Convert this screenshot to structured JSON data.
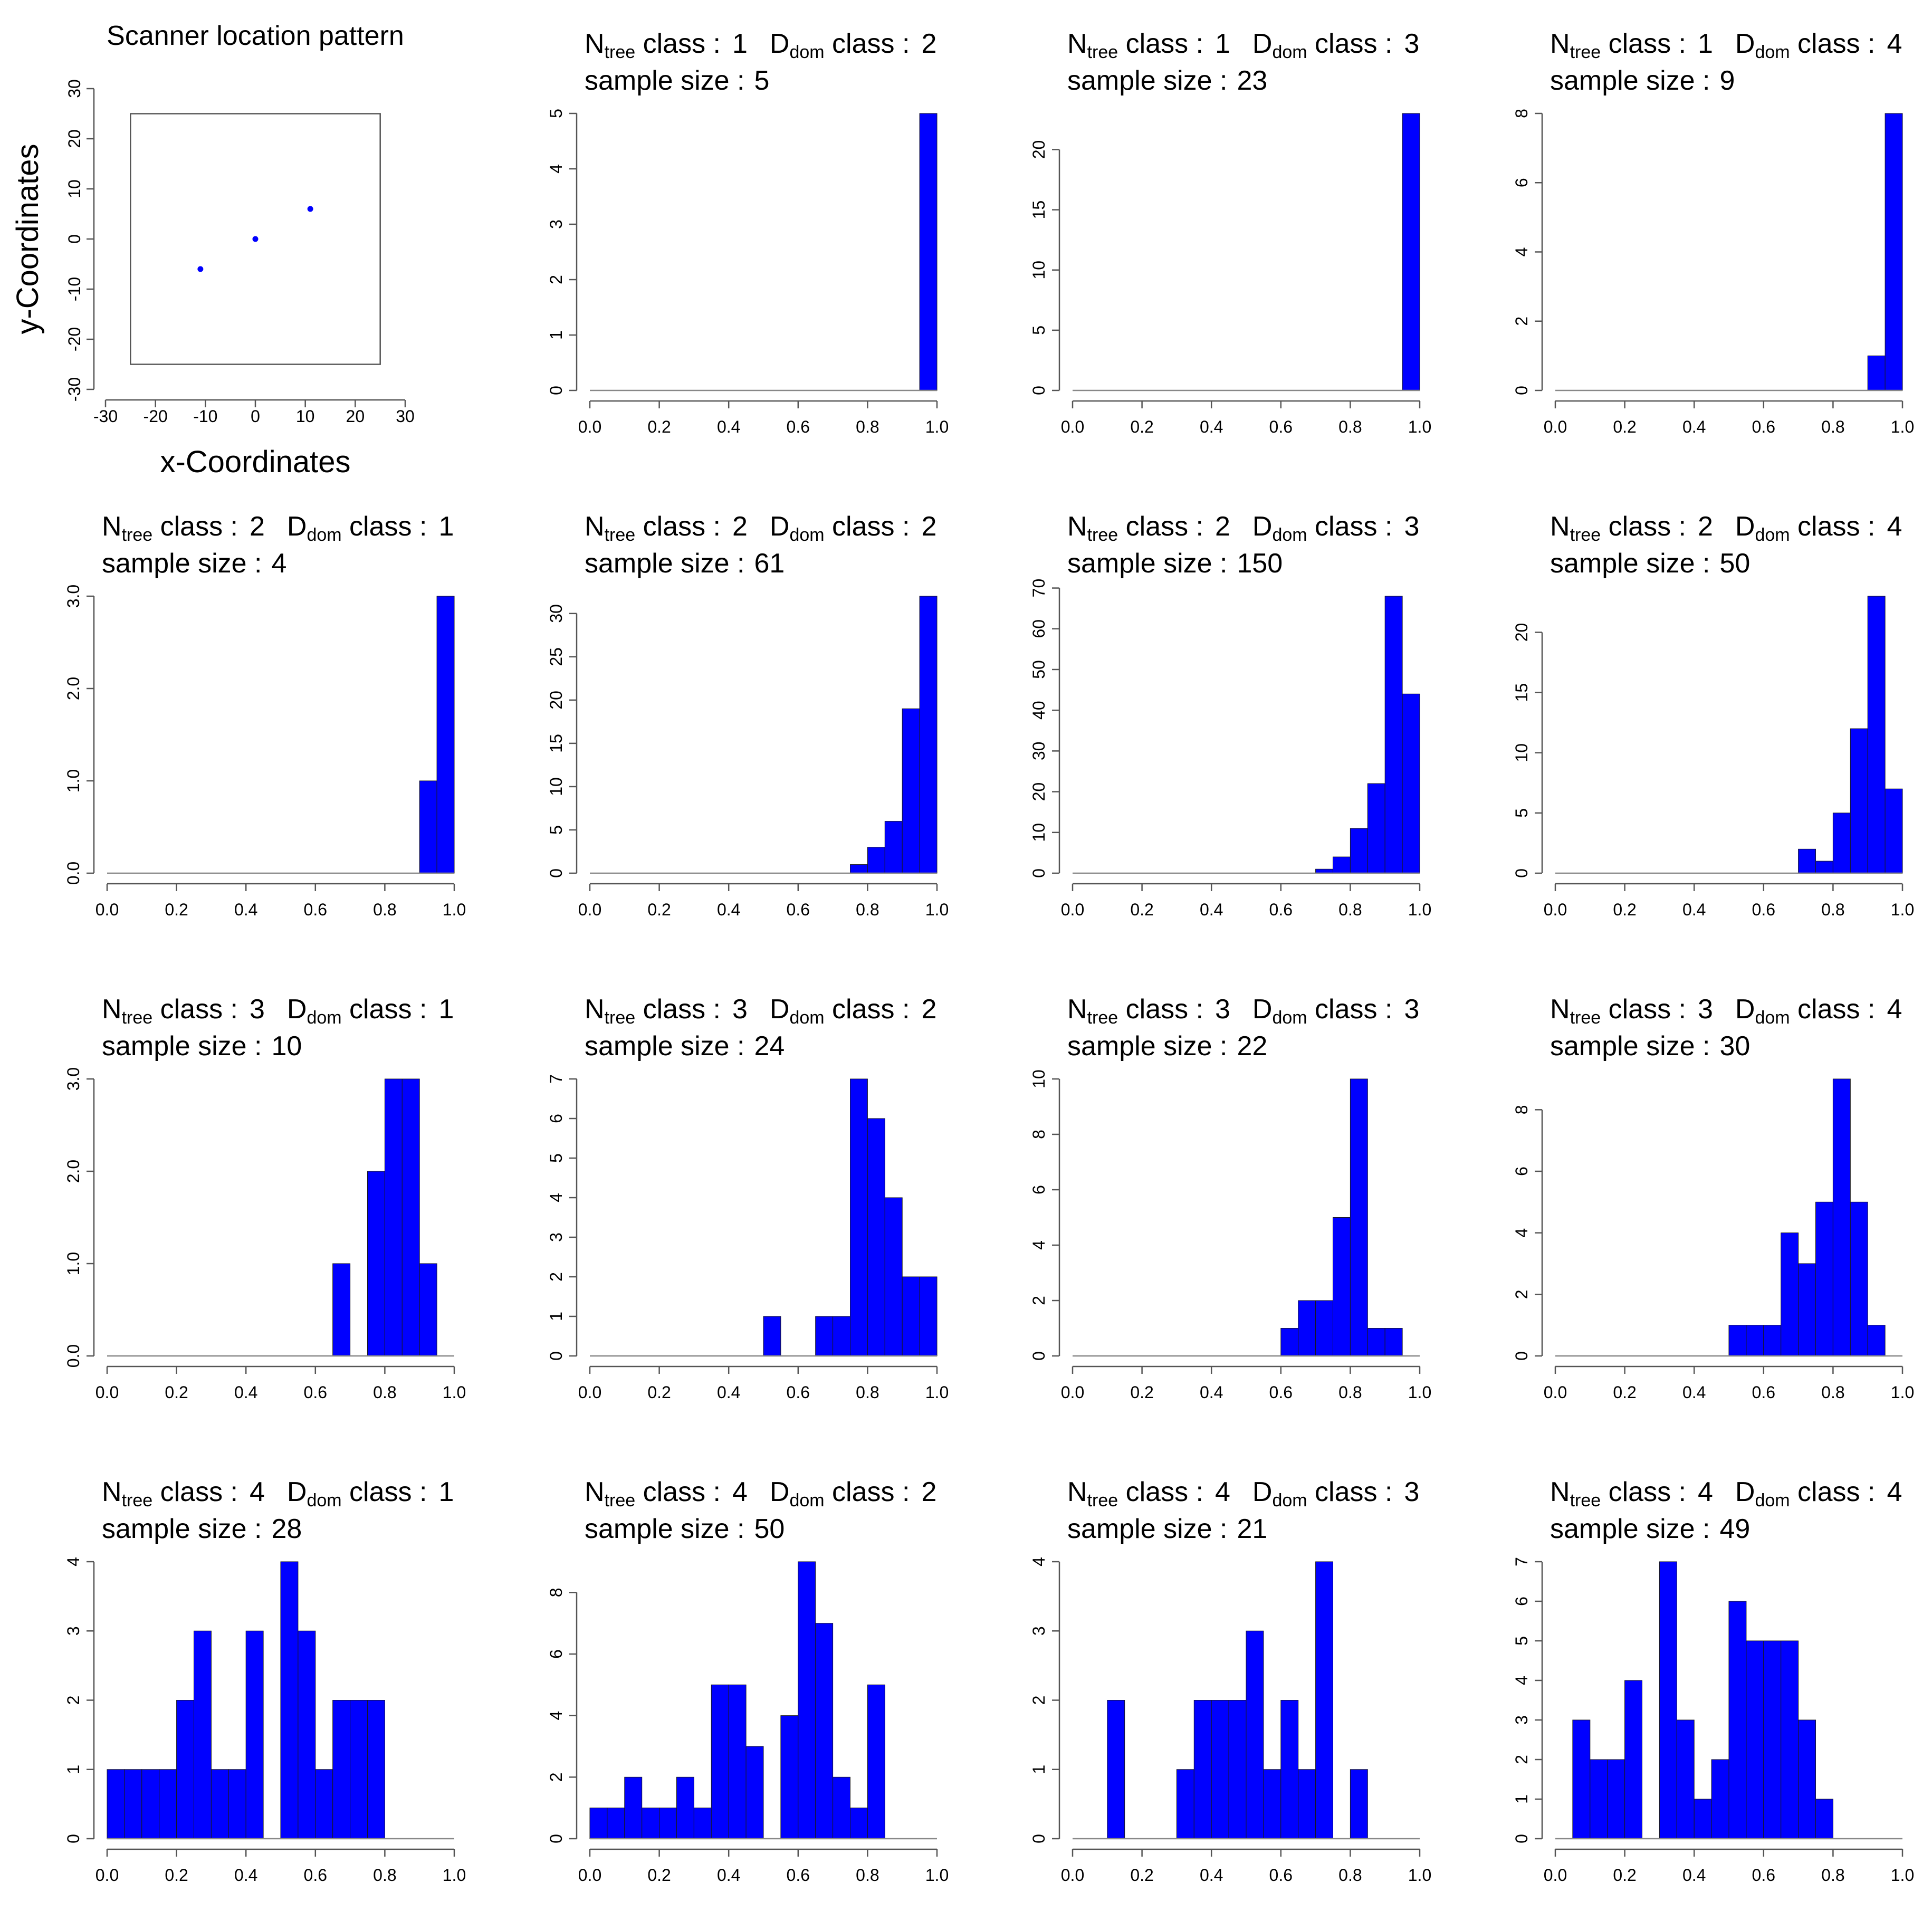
{
  "colors": {
    "bar": "#0000ff",
    "point": "#0000ff"
  },
  "chart_data": [
    {
      "type": "scatter",
      "title": "Scanner location pattern",
      "xlabel": "x-Coordinates",
      "ylabel": "y-Coordinates",
      "xlim": [
        -30,
        30
      ],
      "ylim": [
        -30,
        30
      ],
      "xticks": [
        -30,
        -20,
        -10,
        0,
        10,
        20,
        30
      ],
      "yticks": [
        -30,
        -20,
        -10,
        0,
        10,
        20,
        30
      ],
      "plot_boundary": {
        "xmin": -25,
        "xmax": 25,
        "ymin": -25,
        "ymax": 25
      },
      "points": [
        {
          "x": -11,
          "y": -6
        },
        {
          "x": 0,
          "y": 0
        },
        {
          "x": 11,
          "y": 6
        }
      ]
    },
    {
      "type": "bar",
      "ntree": "1",
      "ddom": "2",
      "n": "5",
      "ymax": 5,
      "yticks": [
        "0",
        "1",
        "2",
        "3",
        "4",
        "5"
      ],
      "values": [
        0,
        0,
        0,
        0,
        0,
        0,
        0,
        0,
        0,
        0,
        0,
        0,
        0,
        0,
        0,
        0,
        0,
        0,
        0,
        5
      ]
    },
    {
      "type": "bar",
      "ntree": "1",
      "ddom": "3",
      "n": "23",
      "ymax": 23,
      "yticks": [
        "0",
        "5",
        "10",
        "15",
        "20"
      ],
      "values": [
        0,
        0,
        0,
        0,
        0,
        0,
        0,
        0,
        0,
        0,
        0,
        0,
        0,
        0,
        0,
        0,
        0,
        0,
        0,
        23
      ]
    },
    {
      "type": "bar",
      "ntree": "1",
      "ddom": "4",
      "n": "9",
      "ymax": 8,
      "yticks": [
        "0",
        "2",
        "4",
        "6",
        "8"
      ],
      "values": [
        0,
        0,
        0,
        0,
        0,
        0,
        0,
        0,
        0,
        0,
        0,
        0,
        0,
        0,
        0,
        0,
        0,
        0,
        1,
        8
      ]
    },
    {
      "type": "bar",
      "ntree": "2",
      "ddom": "1",
      "n": "4",
      "ymax": 3,
      "yticks": [
        "0.0",
        "1.0",
        "2.0",
        "3.0"
      ],
      "values": [
        0,
        0,
        0,
        0,
        0,
        0,
        0,
        0,
        0,
        0,
        0,
        0,
        0,
        0,
        0,
        0,
        0,
        0,
        1,
        3
      ]
    },
    {
      "type": "bar",
      "ntree": "2",
      "ddom": "2",
      "n": "61",
      "ymax": 32,
      "yticks": [
        "0",
        "5",
        "10",
        "15",
        "20",
        "25",
        "30"
      ],
      "values": [
        0,
        0,
        0,
        0,
        0,
        0,
        0,
        0,
        0,
        0,
        0,
        0,
        0,
        0,
        0,
        1,
        3,
        6,
        19,
        32
      ]
    },
    {
      "type": "bar",
      "ntree": "2",
      "ddom": "3",
      "n": "150",
      "ymax": 68,
      "yticks": [
        "0",
        "10",
        "20",
        "30",
        "40",
        "50",
        "60",
        "70"
      ],
      "values": [
        0,
        0,
        0,
        0,
        0,
        0,
        0,
        0,
        0,
        0,
        0,
        0,
        0,
        0,
        1,
        4,
        11,
        22,
        68,
        44
      ]
    },
    {
      "type": "bar",
      "ntree": "2",
      "ddom": "4",
      "n": "50",
      "ymax": 23,
      "yticks": [
        "0",
        "5",
        "10",
        "15",
        "20"
      ],
      "values": [
        0,
        0,
        0,
        0,
        0,
        0,
        0,
        0,
        0,
        0,
        0,
        0,
        0,
        0,
        2,
        1,
        5,
        12,
        23,
        7
      ]
    },
    {
      "type": "bar",
      "ntree": "3",
      "ddom": "1",
      "n": "10",
      "ymax": 3,
      "yticks": [
        "0.0",
        "1.0",
        "2.0",
        "3.0"
      ],
      "values": [
        0,
        0,
        0,
        0,
        0,
        0,
        0,
        0,
        0,
        0,
        0,
        0,
        0,
        1,
        0,
        2,
        3,
        3,
        1,
        0
      ]
    },
    {
      "type": "bar",
      "ntree": "3",
      "ddom": "2",
      "n": "24",
      "ymax": 7,
      "yticks": [
        "0",
        "1",
        "2",
        "3",
        "4",
        "5",
        "6",
        "7"
      ],
      "values": [
        0,
        0,
        0,
        0,
        0,
        0,
        0,
        0,
        0,
        0,
        1,
        0,
        0,
        1,
        1,
        7,
        6,
        4,
        2,
        2
      ]
    },
    {
      "type": "bar",
      "ntree": "3",
      "ddom": "3",
      "n": "22",
      "ymax": 10,
      "yticks": [
        "0",
        "2",
        "4",
        "6",
        "8",
        "10"
      ],
      "values": [
        0,
        0,
        0,
        0,
        0,
        0,
        0,
        0,
        0,
        0,
        0,
        0,
        1,
        2,
        2,
        5,
        10,
        1,
        1,
        0
      ]
    },
    {
      "type": "bar",
      "ntree": "3",
      "ddom": "4",
      "n": "30",
      "ymax": 9,
      "yticks": [
        "0",
        "2",
        "4",
        "6",
        "8"
      ],
      "values": [
        0,
        0,
        0,
        0,
        0,
        0,
        0,
        0,
        0,
        0,
        1,
        1,
        1,
        4,
        3,
        5,
        9,
        5,
        1,
        0
      ]
    },
    {
      "type": "bar",
      "ntree": "4",
      "ddom": "1",
      "n": "28",
      "ymax": 4,
      "yticks": [
        "0",
        "1",
        "2",
        "3",
        "4"
      ],
      "values": [
        1,
        1,
        1,
        1,
        2,
        3,
        1,
        1,
        3,
        0,
        4,
        3,
        1,
        2,
        2,
        2,
        0,
        0,
        0,
        0
      ]
    },
    {
      "type": "bar",
      "ntree": "4",
      "ddom": "2",
      "n": "50",
      "ymax": 9,
      "yticks": [
        "0",
        "2",
        "4",
        "6",
        "8"
      ],
      "values": [
        1,
        1,
        2,
        1,
        1,
        2,
        1,
        5,
        5,
        3,
        0,
        4,
        9,
        7,
        2,
        1,
        5,
        0,
        0,
        0
      ]
    },
    {
      "type": "bar",
      "ntree": "4",
      "ddom": "3",
      "n": "21",
      "ymax": 4,
      "yticks": [
        "0",
        "1",
        "2",
        "3",
        "4"
      ],
      "values": [
        0,
        0,
        2,
        0,
        0,
        0,
        1,
        2,
        2,
        2,
        3,
        1,
        2,
        1,
        4,
        0,
        1,
        0,
        0,
        0
      ]
    },
    {
      "type": "bar",
      "ntree": "4",
      "ddom": "4",
      "n": "49",
      "ymax": 7,
      "yticks": [
        "0",
        "1",
        "2",
        "3",
        "4",
        "5",
        "6",
        "7"
      ],
      "values": [
        0,
        3,
        2,
        2,
        4,
        0,
        7,
        3,
        1,
        2,
        6,
        5,
        5,
        5,
        3,
        1,
        0,
        0,
        0,
        0
      ]
    }
  ],
  "hist_common": {
    "xlim": [
      0,
      1
    ],
    "xticks": [
      "0.0",
      "0.2",
      "0.4",
      "0.6",
      "0.8",
      "1.0"
    ],
    "bin_width": 0.05,
    "title_class_word": "class :",
    "ntree_main": "N",
    "ntree_sub": "tree",
    "ddom_main": "D",
    "ddom_sub": "dom",
    "sample_size_label": "sample size :"
  }
}
